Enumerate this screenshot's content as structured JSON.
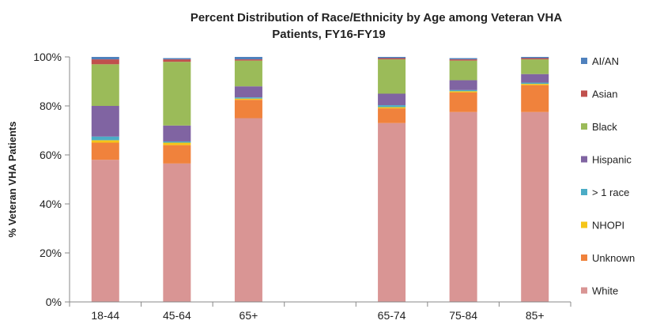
{
  "chart_data": {
    "type": "bar",
    "stacked": true,
    "title_lines": [
      "Percent Distribution of Race/Ethnicity by Age among Veteran VHA",
      "Patients, FY16-FY19"
    ],
    "xlabel": "",
    "ylabel": "% Veteran VHA Patients",
    "ylim": [
      0,
      100
    ],
    "y_ticks": [
      {
        "value": 0,
        "label": "0%"
      },
      {
        "value": 20,
        "label": "20%"
      },
      {
        "value": 40,
        "label": "40%"
      },
      {
        "value": 60,
        "label": "60%"
      },
      {
        "value": 80,
        "label": "80%"
      },
      {
        "value": 100,
        "label": "100%"
      }
    ],
    "grid": false,
    "legend_position": "right",
    "categories": [
      "18-44",
      "45-64",
      "65+",
      "",
      "65-74",
      "75-84",
      "85+"
    ],
    "stack_order": [
      "White",
      "Unknown",
      "NHOPI",
      "> 1 race",
      "Hispanic",
      "Black",
      "Asian",
      "AI/AN"
    ],
    "legend_order": [
      "AI/AN",
      "Asian",
      "Black",
      "Hispanic",
      "> 1 race",
      "NHOPI",
      "Unknown",
      "White"
    ],
    "series": [
      {
        "name": "White",
        "color": "#d99594",
        "values": [
          58,
          56.5,
          75,
          null,
          73,
          77.5,
          77.5
        ]
      },
      {
        "name": "Unknown",
        "color": "#f0823c",
        "values": [
          7,
          7.5,
          7.5,
          null,
          6,
          8,
          11
        ]
      },
      {
        "name": "NHOPI",
        "color": "#f5c518",
        "values": [
          1,
          1,
          0.5,
          null,
          0.5,
          0.5,
          0.5
        ]
      },
      {
        "name": "> 1 race",
        "color": "#4bacc6",
        "values": [
          1.5,
          0.5,
          0.5,
          null,
          0.8,
          0.5,
          0.5
        ]
      },
      {
        "name": "Hispanic",
        "color": "#8064a2",
        "values": [
          12.5,
          6.5,
          4.5,
          null,
          4.7,
          4,
          3.5
        ]
      },
      {
        "name": "Black",
        "color": "#9bbb59",
        "values": [
          17,
          26,
          10.5,
          null,
          14,
          8,
          6
        ]
      },
      {
        "name": "Asian",
        "color": "#c0504d",
        "values": [
          2,
          1,
          0.5,
          null,
          0.5,
          0.5,
          0.5
        ]
      },
      {
        "name": "AI/AN",
        "color": "#4f81bd",
        "values": [
          1,
          0.5,
          1,
          null,
          0.5,
          0.5,
          0.5
        ]
      }
    ]
  }
}
